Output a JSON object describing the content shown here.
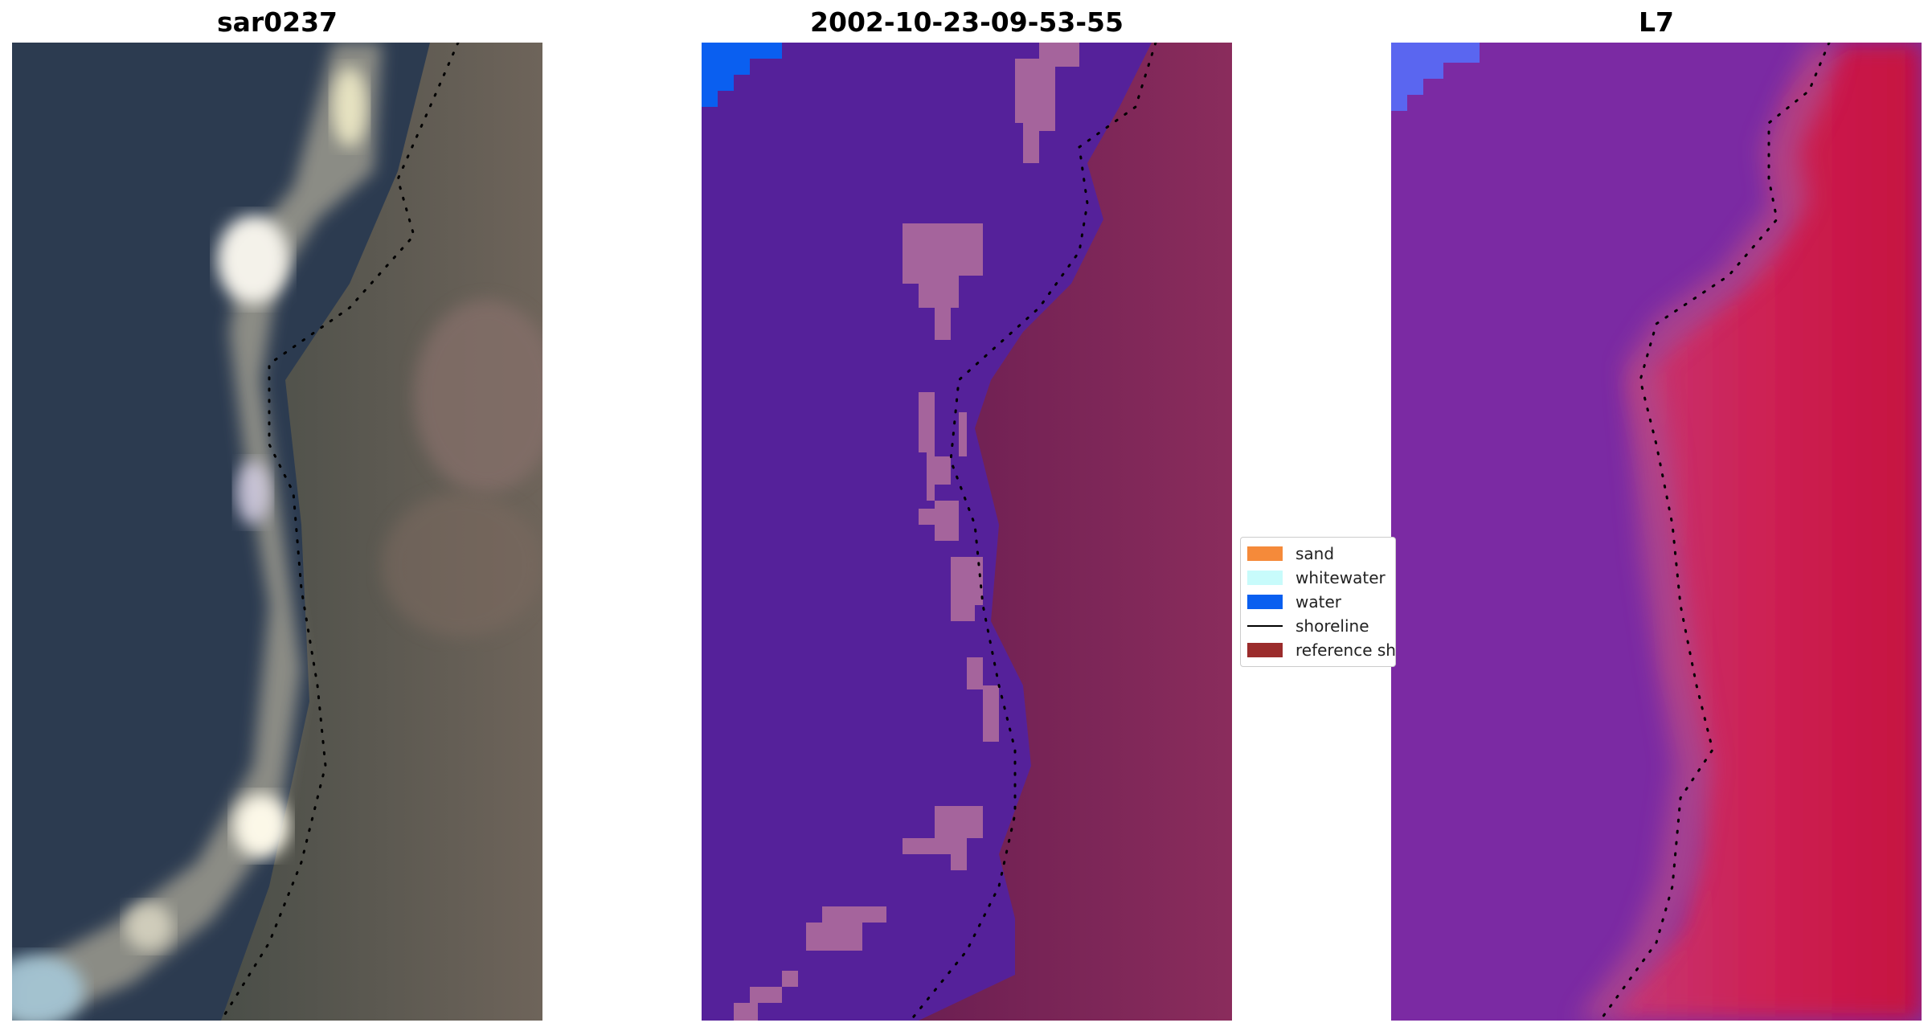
{
  "panels": [
    {
      "title": "sar0237"
    },
    {
      "title": "2002-10-23-09-53-55"
    },
    {
      "title": "L7"
    }
  ],
  "legend": {
    "items": [
      {
        "label": "sand",
        "color": "#f58a3a",
        "type": "patch"
      },
      {
        "label": "whitewater",
        "color": "#c8fbfb",
        "type": "patch"
      },
      {
        "label": "water",
        "color": "#0a5ff0",
        "type": "patch"
      },
      {
        "label": "shoreline",
        "color": "#000000",
        "type": "line"
      },
      {
        "label": "reference shoreline",
        "color": "#9b2c2c",
        "type": "patch"
      }
    ]
  },
  "colors": {
    "rgb_sea": "#2a3a52",
    "rgb_land": "#5a5a4a",
    "rgb_sand": "#c8c2b0",
    "class_water_bg": "#55219a",
    "class_land": "#7c2457",
    "class_sand_patch": "#a5649c",
    "class_water_blue": "#0a5ff0",
    "swir_water": "#7a2aa5",
    "swir_land": "#c81848",
    "swir_corner": "#5a66f0"
  }
}
